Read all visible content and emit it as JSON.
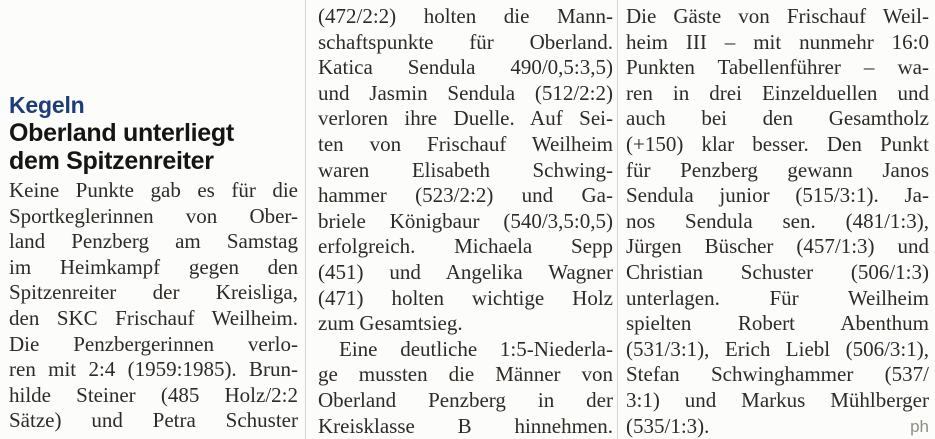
{
  "article": {
    "kicker": "Kegeln",
    "headline_line1": "Oberland unterliegt",
    "headline_line2": "dem Spitzenreiter",
    "byline": "ph",
    "colors": {
      "kicker_blue": "#1d3c7a",
      "body_text": "#2e2b27",
      "byline_gray": "#8f8d86",
      "paper": "#fcfcfa",
      "column_rule": "#d6d3cc"
    }
  },
  "columns": [
    {
      "id": "left",
      "lines": [
        {
          "text": "Keine Punkte gab es für die"
        },
        {
          "text": "Sportkeglerinnen von Ober-"
        },
        {
          "text": "land Penzberg am Samstag"
        },
        {
          "text": "im Heimkampf gegen den"
        },
        {
          "text": "Spitzenreiter der Kreisliga,"
        },
        {
          "text": "den SKC Frischauf Weilheim."
        },
        {
          "text": "Die Penzbergerinnen verlo-"
        },
        {
          "text": "ren mit 2:4 (1959:1985). Brun-"
        },
        {
          "text": "hilde Steiner (485 Holz/2:2"
        },
        {
          "text": "Sätze) und Petra Schuster"
        }
      ]
    },
    {
      "id": "middle",
      "lines": [
        {
          "text": "(472/2:2) holten die Mann-"
        },
        {
          "text": "schaftspunkte für Oberland."
        },
        {
          "text": "Katica Sendula 490/0,5:3,5)"
        },
        {
          "text": "und Jasmin Sendula (512/2:2)"
        },
        {
          "text": "verloren ihre Duelle. Auf Sei-"
        },
        {
          "text": "ten von Frischauf Weilheim"
        },
        {
          "text": "waren Elisabeth Schwing-"
        },
        {
          "text": "hammer (523/2:2) und Ga-"
        },
        {
          "text": "briele Königbaur (540/3,5:0,5)"
        },
        {
          "text": "erfolgreich. Michaela Sepp"
        },
        {
          "text": "(451) und Angelika Wagner"
        },
        {
          "text": "(471) holten wichtige Holz"
        },
        {
          "text": "zum Gesamtsieg.",
          "justify": false
        },
        {
          "text": "Eine deutliche 1:5-Niederla-",
          "indent": true
        },
        {
          "text": "ge mussten die Männer von"
        },
        {
          "text": "Oberland Penzberg in der"
        },
        {
          "text": "Kreisklasse B hinnehmen."
        }
      ]
    },
    {
      "id": "right",
      "lines": [
        {
          "text": "Die Gäste von Frischauf Weil-"
        },
        {
          "text": "heim III – mit nunmehr 16:0"
        },
        {
          "text": "Punkten Tabellenführer – wa-"
        },
        {
          "text": "ren in drei Einzelduellen und"
        },
        {
          "text": "auch bei den Gesamtholz"
        },
        {
          "text": "(+150) klar besser. Den Punkt"
        },
        {
          "text": "für Penzberg gewann Janos"
        },
        {
          "text": "Sendula junior (515/3:1). Ja-"
        },
        {
          "text": "nos Sendula sen. (481/1:3),"
        },
        {
          "text": "Jürgen Büscher (457/1:3) und"
        },
        {
          "text": "Christian Schuster (506/1:3)"
        },
        {
          "text": "unterlagen. Für Weilheim"
        },
        {
          "text": "spielten Robert Abenthum"
        },
        {
          "text": "(531/3:1), Erich Liebl (506/3:1),"
        },
        {
          "text": "Stefan Schwinghammer (537/"
        },
        {
          "text": "3:1) und Markus Mühlberger"
        },
        {
          "text": "(535/1:3).",
          "justify": false,
          "byline": true
        }
      ]
    }
  ]
}
